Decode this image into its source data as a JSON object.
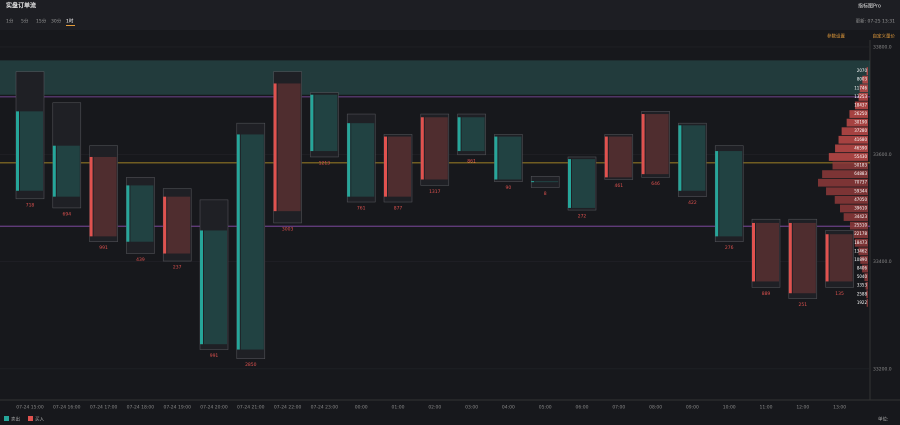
{
  "header": {
    "title": "实盘订单流",
    "tabs": [
      "1分",
      "5分",
      "15分",
      "30分",
      "1时"
    ],
    "active_tab": 4,
    "brand": "指标图Pro",
    "updated": "更新: 07-25 13:31",
    "settings": "参数设置",
    "custom": "自定义量价"
  },
  "chart_data": {
    "type": "footprint",
    "ylim": [
      33142,
      33813
    ],
    "yticks": [
      {
        "value": 33800,
        "label": "33800.0"
      },
      {
        "value": 33600,
        "label": "33600.0"
      },
      {
        "value": 33400,
        "label": "33400.0"
      },
      {
        "value": 33200,
        "label": "33200.0"
      }
    ],
    "categories": [
      "07-24 15:00",
      "07-24 16:00",
      "07-24 17:00",
      "07-24 18:00",
      "07-24 19:00",
      "07-24 20:00",
      "07-24 21:00",
      "07-24 22:00",
      "07-24 23:00",
      "00:00",
      "01:00",
      "02:00",
      "03:00",
      "04:00",
      "05:00",
      "06:00",
      "07:00",
      "08:00",
      "09:00",
      "10:00",
      "11:00",
      "12:00",
      "13:00"
    ],
    "high": [
      33754,
      33696,
      33616,
      33557,
      33536,
      33515,
      33658,
      33754,
      33715,
      33675,
      33637,
      33675,
      33675,
      33637,
      33559,
      33595,
      33637,
      33680,
      33658,
      33616,
      33479,
      33479,
      33458
    ],
    "low": [
      33517,
      33500,
      33437,
      33415,
      33401,
      33236,
      33219,
      33472,
      33595,
      33511,
      33511,
      33542,
      33599,
      33549,
      33538,
      33496,
      33553,
      33557,
      33521,
      33437,
      33352,
      33331,
      33352
    ],
    "open": [
      33680,
      33616,
      33447,
      33542,
      33415,
      33458,
      33637,
      33494,
      33711,
      33658,
      33521,
      33553,
      33669,
      33633,
      33550,
      33591,
      33557,
      33563,
      33654,
      33606,
      33363,
      33341,
      33363
    ],
    "close": [
      33532,
      33521,
      33595,
      33437,
      33521,
      33246,
      33236,
      33732,
      33606,
      33521,
      33633,
      33669,
      33606,
      33553,
      33548,
      33500,
      33633,
      33675,
      33532,
      33447,
      33472,
      33472,
      33451
    ],
    "delta": [
      718,
      694,
      991,
      439,
      237,
      991,
      2850,
      3003,
      1213,
      761,
      877,
      1317,
      861,
      90,
      8,
      272,
      461,
      646,
      422,
      276,
      889,
      251,
      135
    ],
    "up_color": "#e0524f",
    "down_color": "#26a69a",
    "last_price": 33584,
    "levels": [
      33707,
      33466
    ],
    "band": [
      33775,
      33711
    ],
    "profile_prices": [
      33755,
      33739,
      33723,
      33707,
      33691,
      33675,
      33659,
      33643,
      33627,
      33611,
      33595,
      33579,
      33563,
      33547,
      33531,
      33515,
      33499,
      33483,
      33467,
      33451,
      33435,
      33419,
      33403,
      33387,
      33371,
      33355,
      33339,
      33323
    ],
    "profile_values": [
      2070,
      8003,
      11746,
      13253,
      18437,
      26250,
      30190,
      37280,
      41680,
      46590,
      55430,
      50183,
      64883,
      70737,
      59344,
      47050,
      39610,
      34423,
      25510,
      22178,
      18473,
      13462,
      10890,
      8406,
      5040,
      3353,
      2588,
      1922
    ],
    "legend": [
      {
        "name": "卖出",
        "color": "#26a69a"
      },
      {
        "name": "买入",
        "color": "#e0524f"
      }
    ],
    "unit_label": "单位:"
  }
}
